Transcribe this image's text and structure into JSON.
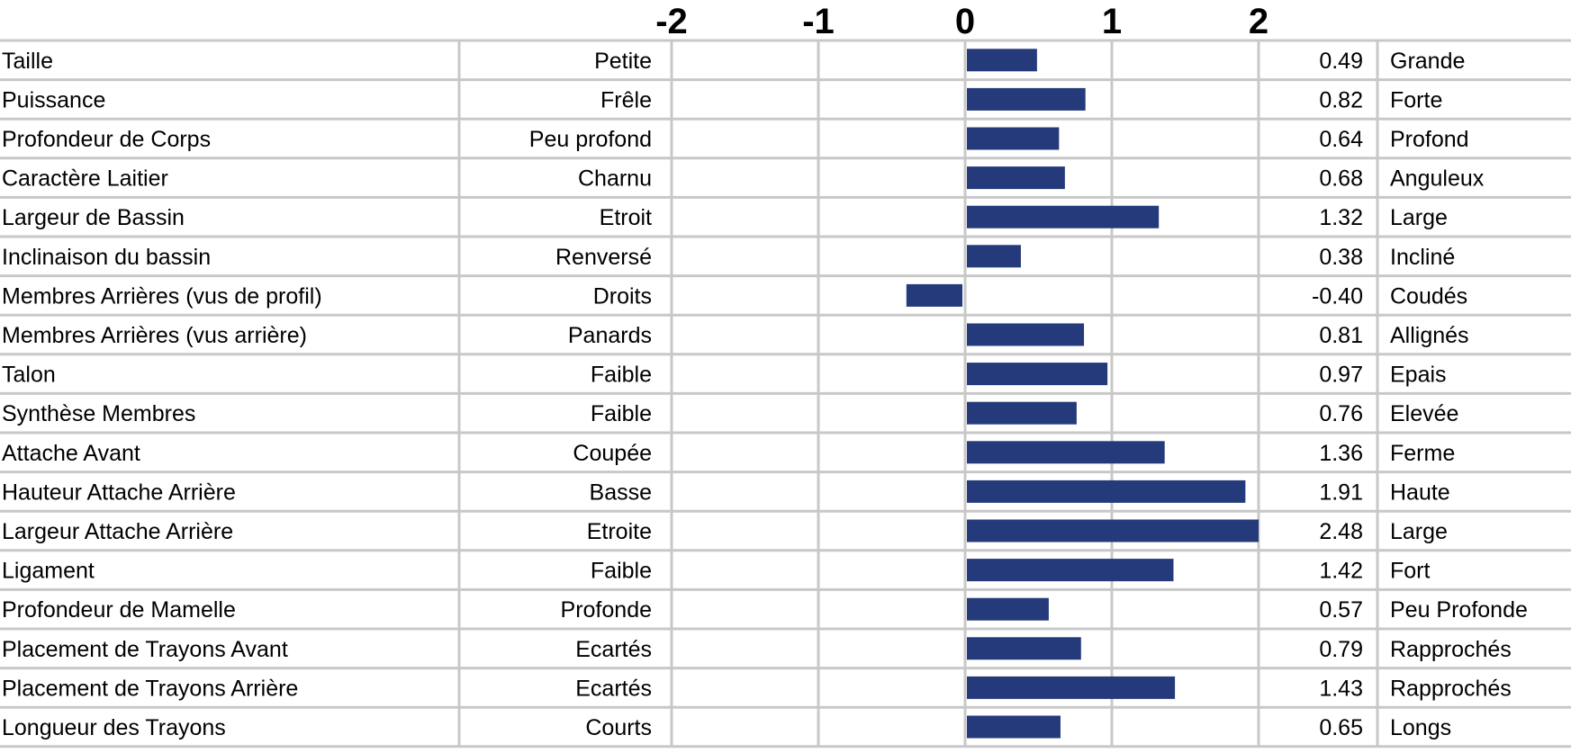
{
  "chart_data": {
    "type": "bar",
    "orientation": "horizontal",
    "title": "",
    "xlabel": "",
    "ylabel": "",
    "xlim": [
      -2,
      2
    ],
    "ticks": [
      "-2",
      "-1",
      "0",
      "1",
      "2"
    ],
    "bar_color": "#253a7a",
    "grid": true,
    "rows": [
      {
        "trait": "Taille",
        "low": "Petite",
        "value": 0.49,
        "label": "0.49",
        "high": "Grande"
      },
      {
        "trait": "Puissance",
        "low": "Frêle",
        "value": 0.82,
        "label": "0.82",
        "high": "Forte"
      },
      {
        "trait": "Profondeur de Corps",
        "low": "Peu profond",
        "value": 0.64,
        "label": "0.64",
        "high": "Profond"
      },
      {
        "trait": "Caractère Laitier",
        "low": "Charnu",
        "value": 0.68,
        "label": "0.68",
        "high": "Anguleux"
      },
      {
        "trait": "Largeur de Bassin",
        "low": "Etroit",
        "value": 1.32,
        "label": "1.32",
        "high": "Large"
      },
      {
        "trait": "Inclinaison du bassin",
        "low": "Renversé",
        "value": 0.38,
        "label": "0.38",
        "high": "Incliné"
      },
      {
        "trait": "Membres Arrières (vus de profil)",
        "low": "Droits",
        "value": -0.4,
        "label": "-0.40",
        "high": "Coudés"
      },
      {
        "trait": "Membres Arrières (vus arrière)",
        "low": "Panards",
        "value": 0.81,
        "label": "0.81",
        "high": "Allignés"
      },
      {
        "trait": "Talon",
        "low": "Faible",
        "value": 0.97,
        "label": "0.97",
        "high": "Epais"
      },
      {
        "trait": "Synthèse Membres",
        "low": "Faible",
        "value": 0.76,
        "label": "0.76",
        "high": "Elevée"
      },
      {
        "trait": "Attache Avant",
        "low": "Coupée",
        "value": 1.36,
        "label": "1.36",
        "high": "Ferme"
      },
      {
        "trait": "Hauteur Attache Arrière",
        "low": "Basse",
        "value": 1.91,
        "label": "1.91",
        "high": "Haute"
      },
      {
        "trait": "Largeur Attache Arrière",
        "low": "Etroite",
        "value": 2.48,
        "label": "2.48",
        "high": "Large"
      },
      {
        "trait": "Ligament",
        "low": "Faible",
        "value": 1.42,
        "label": "1.42",
        "high": "Fort"
      },
      {
        "trait": "Profondeur de Mamelle",
        "low": "Profonde",
        "value": 0.57,
        "label": "0.57",
        "high": "Peu Profonde"
      },
      {
        "trait": "Placement de Trayons Avant",
        "low": "Ecartés",
        "value": 0.79,
        "label": "0.79",
        "high": "Rapprochés"
      },
      {
        "trait": "Placement de Trayons Arrière",
        "low": "Ecartés",
        "value": 1.43,
        "label": "1.43",
        "high": "Rapprochés"
      },
      {
        "trait": "Longueur des Trayons",
        "low": "Courts",
        "value": 0.65,
        "label": "0.65",
        "high": "Longs"
      }
    ]
  }
}
